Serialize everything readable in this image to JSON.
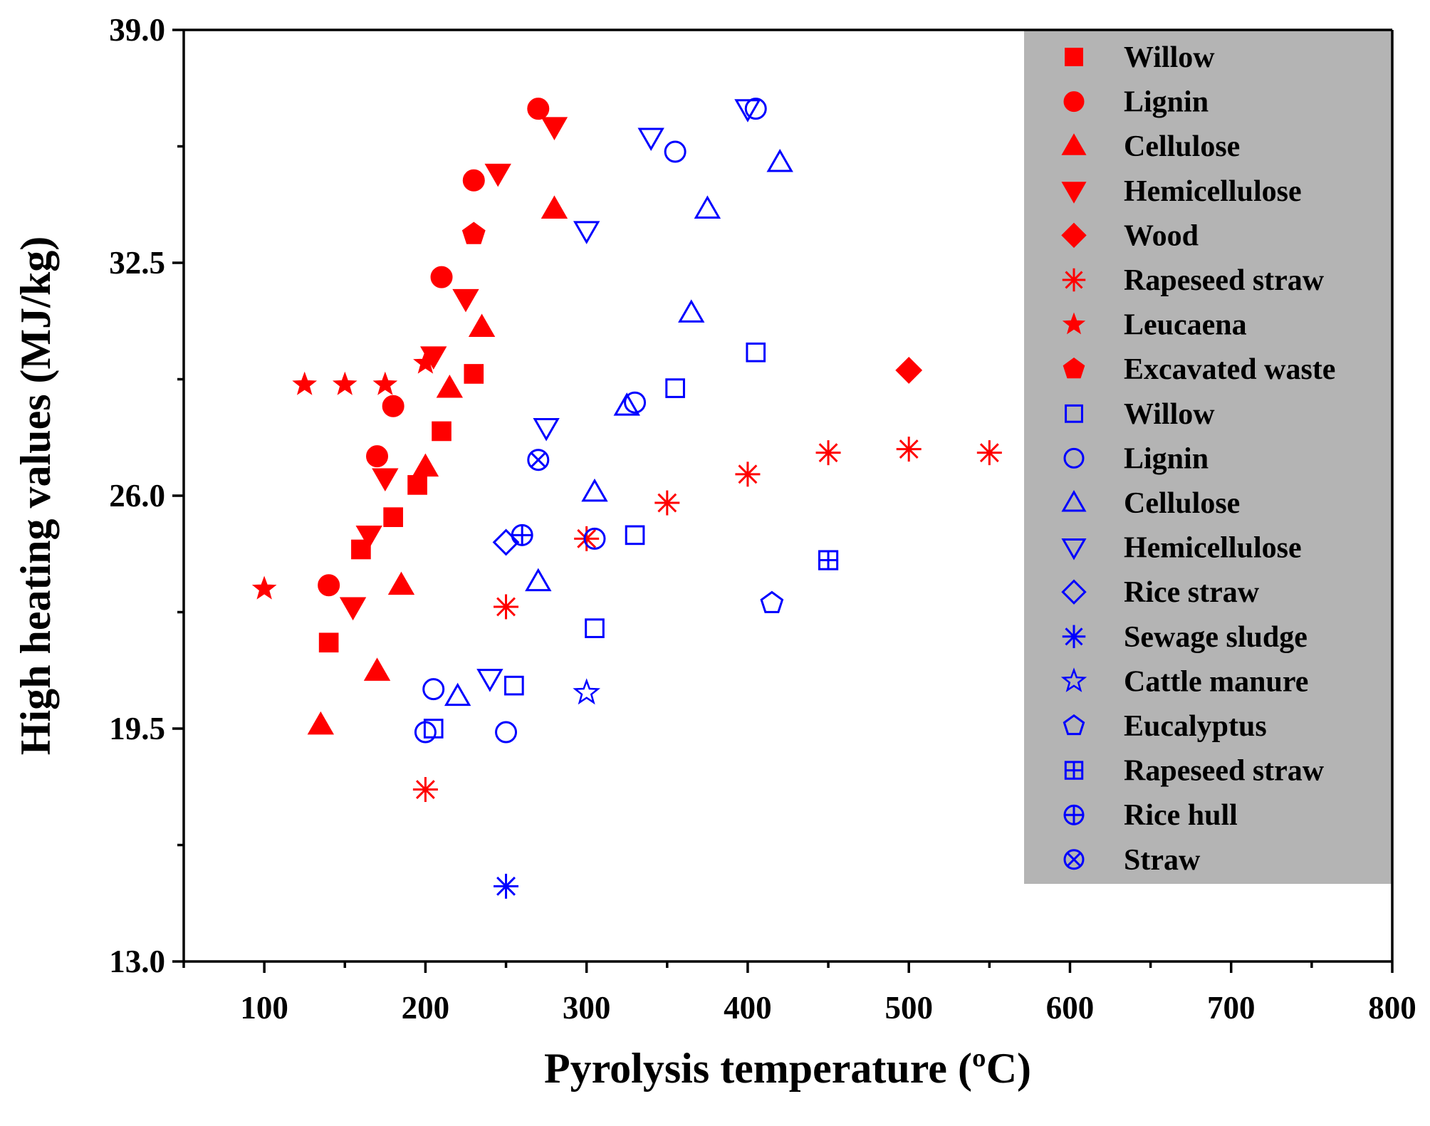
{
  "chart_data": {
    "type": "scatter",
    "title": "",
    "xlabel": "Pyrolysis temperature (ºC)",
    "ylabel": "High heating values (MJ/kg)",
    "xlim": [
      50,
      800
    ],
    "ylim": [
      13.0,
      39.0
    ],
    "xticks": [
      100,
      200,
      300,
      400,
      500,
      600,
      700,
      800
    ],
    "xtick_labels": [
      "100",
      "200",
      "300",
      "400",
      "500",
      "600",
      "700",
      "800"
    ],
    "yticks": [
      13.0,
      19.5,
      26.0,
      32.5,
      39.0
    ],
    "ytick_labels": [
      "13.0",
      "19.5",
      "26.0",
      "32.5",
      "39.0"
    ],
    "legend_position": "top-right",
    "series": [
      {
        "name": "Willow",
        "marker": "square",
        "filled": true,
        "color": "#ff0000",
        "points": [
          [
            140,
            21.9
          ],
          [
            160,
            24.5
          ],
          [
            180,
            25.4
          ],
          [
            195,
            26.3
          ],
          [
            210,
            27.8
          ],
          [
            230,
            29.4
          ]
        ]
      },
      {
        "name": "Lignin",
        "marker": "circle",
        "filled": true,
        "color": "#ff0000",
        "points": [
          [
            140,
            23.5
          ],
          [
            170,
            27.1
          ],
          [
            180,
            28.5
          ],
          [
            210,
            32.1
          ],
          [
            230,
            34.8
          ],
          [
            270,
            36.8
          ]
        ]
      },
      {
        "name": "Cellulose",
        "marker": "triangle-up",
        "filled": true,
        "color": "#ff0000",
        "points": [
          [
            135,
            19.6
          ],
          [
            170,
            21.1
          ],
          [
            185,
            23.5
          ],
          [
            200,
            26.8
          ],
          [
            215,
            29.0
          ],
          [
            235,
            30.7
          ],
          [
            280,
            34.0
          ]
        ]
      },
      {
        "name": "Hemicellulose",
        "marker": "triangle-down",
        "filled": true,
        "color": "#ff0000",
        "points": [
          [
            155,
            22.9
          ],
          [
            165,
            24.9
          ],
          [
            175,
            26.5
          ],
          [
            205,
            29.9
          ],
          [
            225,
            31.5
          ],
          [
            245,
            35.0
          ],
          [
            280,
            36.3
          ]
        ]
      },
      {
        "name": "Wood",
        "marker": "diamond",
        "filled": true,
        "color": "#ff0000",
        "points": [
          [
            500,
            29.5
          ]
        ]
      },
      {
        "name": "Rapeseed straw",
        "marker": "asterisk",
        "filled": false,
        "color": "#ff0000",
        "points": [
          [
            200,
            17.8
          ],
          [
            250,
            22.9
          ],
          [
            300,
            24.8
          ],
          [
            350,
            25.8
          ],
          [
            400,
            26.6
          ],
          [
            450,
            27.2
          ],
          [
            500,
            27.3
          ],
          [
            550,
            27.2
          ]
        ]
      },
      {
        "name": "Leucaena",
        "marker": "star",
        "filled": true,
        "color": "#ff0000",
        "points": [
          [
            100,
            23.4
          ],
          [
            125,
            29.1
          ],
          [
            150,
            29.1
          ],
          [
            175,
            29.1
          ],
          [
            200,
            29.7
          ]
        ]
      },
      {
        "name": "Excavated waste",
        "marker": "pentagon",
        "filled": true,
        "color": "#ff0000",
        "points": [
          [
            230,
            33.3
          ]
        ]
      },
      {
        "name": "Willow",
        "marker": "square",
        "filled": false,
        "color": "#0000ff",
        "points": [
          [
            205,
            19.5
          ],
          [
            255,
            20.7
          ],
          [
            305,
            22.3
          ],
          [
            330,
            24.9
          ],
          [
            355,
            29.0
          ],
          [
            405,
            30.0
          ]
        ]
      },
      {
        "name": "Lignin",
        "marker": "circle",
        "filled": false,
        "color": "#0000ff",
        "points": [
          [
            200,
            19.4
          ],
          [
            205,
            20.6
          ],
          [
            250,
            19.4
          ],
          [
            305,
            24.8
          ],
          [
            330,
            28.6
          ],
          [
            355,
            35.6
          ],
          [
            405,
            36.8
          ]
        ]
      },
      {
        "name": "Cellulose",
        "marker": "triangle-up",
        "filled": false,
        "color": "#0000ff",
        "points": [
          [
            220,
            20.4
          ],
          [
            270,
            23.6
          ],
          [
            305,
            26.1
          ],
          [
            325,
            28.5
          ],
          [
            365,
            31.1
          ],
          [
            375,
            34.0
          ],
          [
            420,
            35.3
          ]
        ]
      },
      {
        "name": "Hemicellulose",
        "marker": "triangle-down",
        "filled": false,
        "color": "#0000ff",
        "points": [
          [
            240,
            20.9
          ],
          [
            275,
            27.9
          ],
          [
            300,
            33.4
          ],
          [
            340,
            36.0
          ],
          [
            400,
            36.8
          ]
        ]
      },
      {
        "name": "Rice straw",
        "marker": "diamond",
        "filled": false,
        "color": "#0000ff",
        "points": [
          [
            250,
            24.7
          ]
        ]
      },
      {
        "name": "Sewage sludge",
        "marker": "asterisk",
        "filled": false,
        "color": "#0000ff",
        "points": [
          [
            250,
            15.1
          ]
        ]
      },
      {
        "name": "Cattle manure",
        "marker": "star",
        "filled": false,
        "color": "#0000ff",
        "points": [
          [
            300,
            20.5
          ]
        ]
      },
      {
        "name": "Eucalyptus",
        "marker": "pentagon",
        "filled": false,
        "color": "#0000ff",
        "points": [
          [
            415,
            23.0
          ]
        ]
      },
      {
        "name": "Rapeseed straw",
        "marker": "square-plus",
        "filled": false,
        "color": "#0000ff",
        "points": [
          [
            450,
            24.2
          ]
        ]
      },
      {
        "name": "Rice hull",
        "marker": "circle-plus",
        "filled": false,
        "color": "#0000ff",
        "points": [
          [
            260,
            24.9
          ]
        ]
      },
      {
        "name": "Straw",
        "marker": "circle-x",
        "filled": false,
        "color": "#0000ff",
        "points": [
          [
            270,
            27.0
          ]
        ]
      }
    ]
  }
}
